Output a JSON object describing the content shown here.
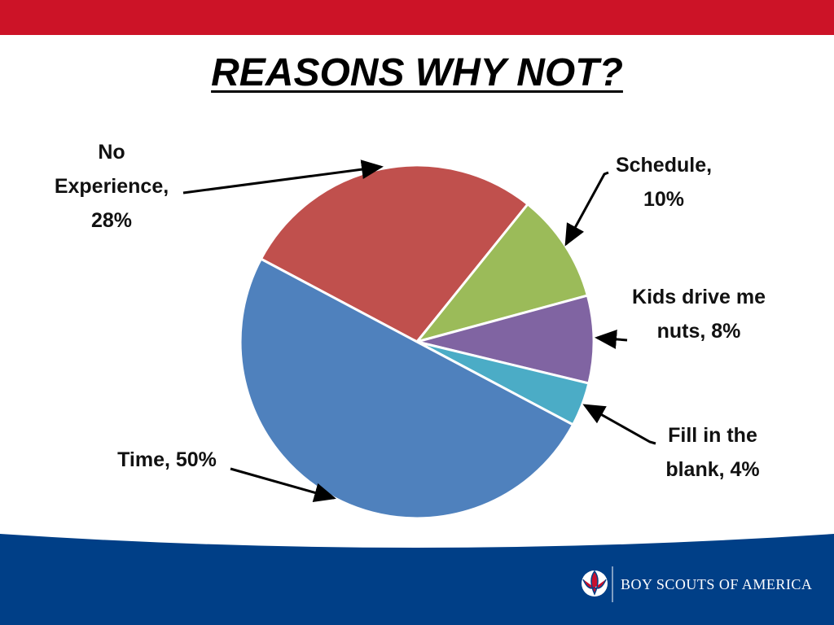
{
  "chart_data": {
    "type": "pie",
    "title": "REASONS WHY NOT?",
    "values": [
      28,
      10,
      8,
      4,
      50
    ],
    "value_labels": [
      "No Experience, 28%",
      "Schedule, 10%",
      "Kids drive me nuts, 8%",
      "Fill in the blank, 4%",
      "Time, 50%"
    ],
    "colors": [
      "#c0504d",
      "#9bbb59",
      "#8064a2",
      "#4bacc6",
      "#4f81bd"
    ]
  },
  "footer": {
    "brand": "BOY SCOUTS OF AMERICA"
  }
}
